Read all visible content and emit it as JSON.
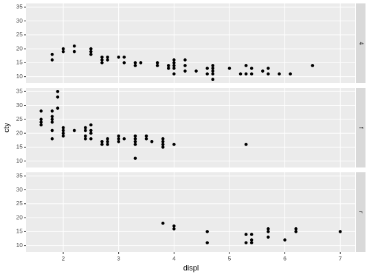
{
  "chart_data": {
    "type": "scatter",
    "x_label": "displ",
    "y_label": "cty",
    "xlim": [
      1.33,
      7.27
    ],
    "ylim": [
      7.7,
      36.3
    ],
    "xticks": [
      2,
      3,
      4,
      5,
      6,
      7
    ],
    "yticks": [
      10,
      15,
      20,
      25,
      30,
      35
    ],
    "grid": true,
    "color": "#000000",
    "panels": [
      {
        "label": "4",
        "x": [
          1.8,
          1.8,
          2.0,
          2.0,
          2.2,
          2.2,
          2.5,
          2.5,
          2.5,
          2.7,
          2.7,
          2.7,
          2.8,
          2.8,
          3.0,
          3.1,
          3.1,
          3.3,
          3.3,
          3.4,
          3.7,
          3.7,
          3.9,
          3.9,
          4.0,
          4.0,
          4.0,
          4.0,
          4.0,
          4.2,
          4.2,
          4.2,
          4.4,
          4.6,
          4.6,
          4.7,
          4.7,
          4.7,
          4.7,
          4.7,
          5.0,
          5.2,
          5.3,
          5.3,
          5.4,
          5.4,
          5.6,
          5.7,
          5.7,
          5.9,
          6.1,
          6.5
        ],
        "y": [
          18,
          16,
          20,
          19,
          21,
          19,
          20,
          19,
          18,
          17,
          16,
          15,
          17,
          16,
          17,
          17,
          15,
          15,
          14,
          15,
          15,
          14,
          14,
          13,
          16,
          15,
          14,
          13,
          11,
          16,
          14,
          12,
          12,
          13,
          11,
          14,
          13,
          12,
          11,
          9,
          13,
          11,
          11,
          14,
          13,
          11,
          12,
          13,
          11,
          11,
          11,
          14
        ]
      },
      {
        "label": "f",
        "x": [
          1.6,
          1.6,
          1.6,
          1.6,
          1.8,
          1.8,
          1.8,
          1.8,
          1.8,
          1.8,
          1.9,
          1.9,
          1.9,
          2.0,
          2.0,
          2.0,
          2.0,
          2.2,
          2.4,
          2.4,
          2.4,
          2.4,
          2.5,
          2.5,
          2.5,
          2.5,
          2.7,
          2.7,
          2.8,
          2.8,
          2.8,
          3.0,
          3.0,
          3.0,
          3.1,
          3.3,
          3.3,
          3.3,
          3.3,
          3.3,
          3.5,
          3.5,
          3.6,
          3.8,
          3.8,
          3.8,
          3.8,
          4.0,
          5.3
        ],
        "y": [
          28,
          25,
          24,
          23,
          28,
          26,
          25,
          24,
          21,
          18,
          35,
          33,
          29,
          22,
          21,
          20,
          19,
          21,
          22,
          21,
          19,
          18,
          23,
          21,
          20,
          18,
          17,
          16,
          18,
          17,
          16,
          19,
          18,
          17,
          18,
          19,
          18,
          17,
          16,
          11,
          19,
          18,
          17,
          18,
          17,
          16,
          15,
          16,
          16
        ]
      },
      {
        "label": "r",
        "x": [
          3.8,
          4.0,
          4.0,
          4.6,
          4.6,
          5.3,
          5.3,
          5.4,
          5.4,
          5.4,
          5.7,
          5.7,
          5.7,
          6.0,
          6.2,
          6.2,
          7.0
        ],
        "y": [
          18,
          17,
          16,
          15,
          11,
          14,
          11,
          14,
          12,
          11,
          16,
          15,
          13,
          12,
          16,
          15,
          15
        ]
      }
    ]
  }
}
